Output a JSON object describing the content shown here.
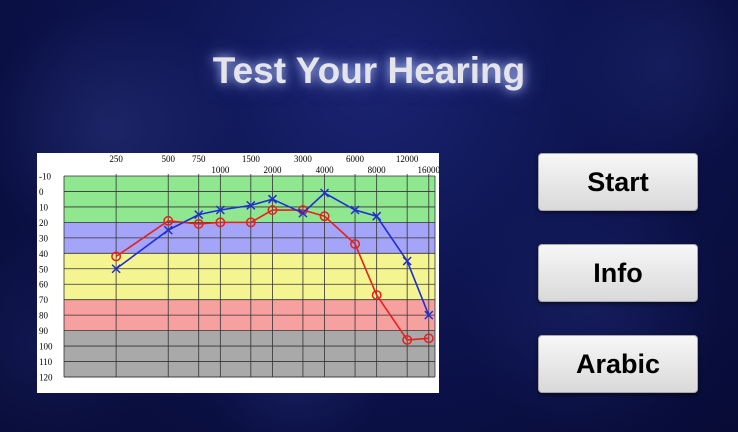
{
  "title": "Test Your Hearing",
  "buttons": {
    "start": "Start",
    "info": "Info",
    "arabic": "Arabic"
  },
  "chart_data": {
    "type": "line",
    "title": "",
    "xlabel": "",
    "ylabel": "",
    "y_axis": "inverted",
    "ylim": [
      -10,
      120
    ],
    "yticks": [
      "-10",
      "0",
      "10",
      "20",
      "30",
      "40",
      "50",
      "60",
      "70",
      "80",
      "90",
      "100",
      "110",
      "120"
    ],
    "x_scale": "octave",
    "x_ticks_top_row": [
      "250",
      "500",
      "750",
      "1500",
      "3000",
      "6000",
      "12000"
    ],
    "x_ticks_bottom_row": [
      "1000",
      "2000",
      "4000",
      "8000",
      "16000"
    ],
    "frequencies": [
      250,
      500,
      750,
      1000,
      1500,
      2000,
      3000,
      4000,
      6000,
      8000,
      12000,
      16000
    ],
    "grid": true,
    "bands": [
      {
        "from": -10,
        "to": 20,
        "color": "#8fe88f"
      },
      {
        "from": 20,
        "to": 40,
        "color": "#a4a4f8"
      },
      {
        "from": 40,
        "to": 70,
        "color": "#f4f490"
      },
      {
        "from": 70,
        "to": 90,
        "color": "#f7a0a0"
      },
      {
        "from": 90,
        "to": 120,
        "color": "#a9a9a9"
      }
    ],
    "series": [
      {
        "marker": "circle",
        "color": "#e8201c",
        "x": [
          250,
          500,
          750,
          1000,
          1500,
          2000,
          3000,
          4000,
          6000,
          8000,
          12000,
          16000
        ],
        "y": [
          42,
          19,
          21,
          20,
          20,
          12,
          12,
          16,
          34,
          67,
          96,
          95
        ]
      },
      {
        "marker": "x",
        "color": "#1f2ed8",
        "x": [
          250,
          500,
          750,
          1000,
          1500,
          2000,
          3000,
          4000,
          6000,
          8000,
          12000,
          16000
        ],
        "y": [
          50,
          25,
          15,
          12,
          9,
          5,
          14,
          1,
          12,
          16,
          45,
          80
        ]
      }
    ]
  }
}
